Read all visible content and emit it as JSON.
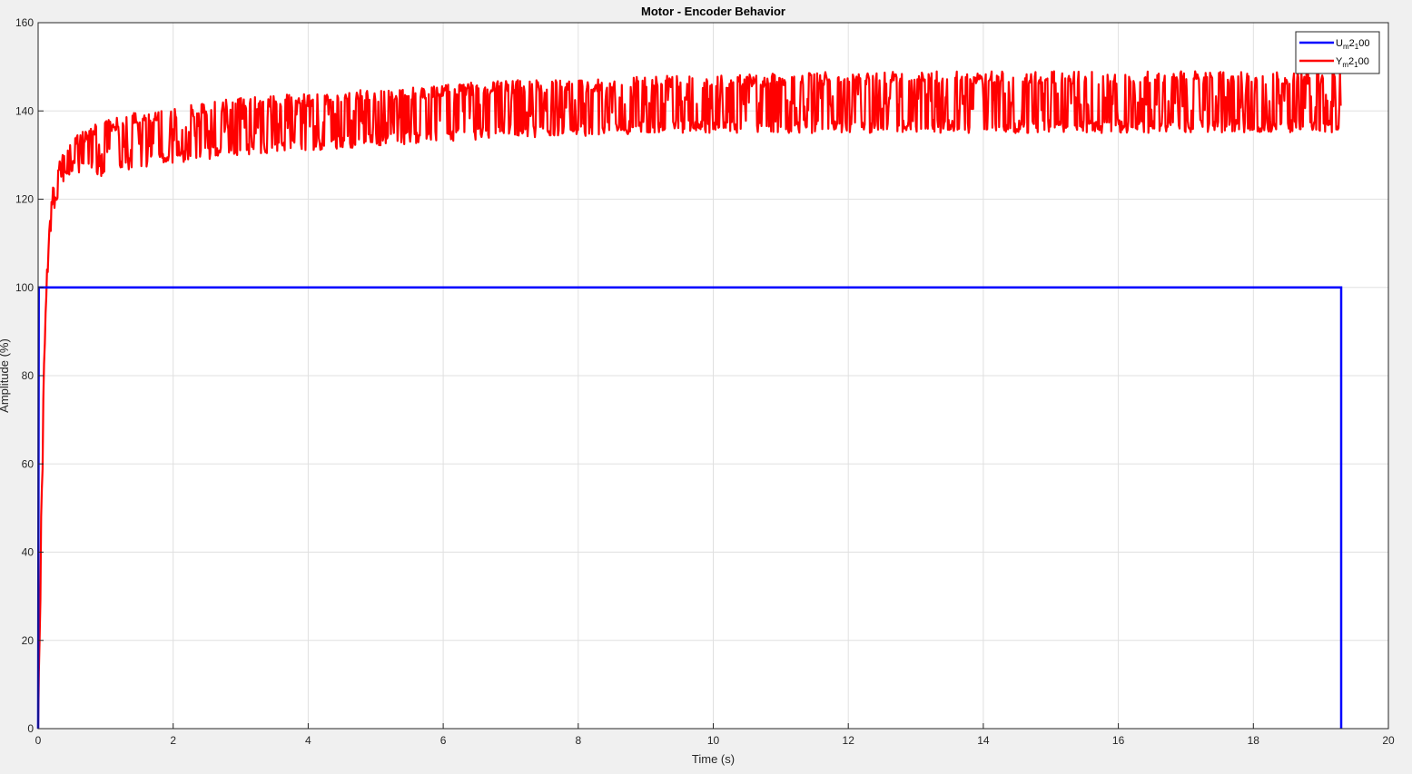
{
  "chart_data": {
    "type": "line",
    "title": "Motor - Encoder Behavior",
    "xlabel": "Time (s)",
    "ylabel": "Amplitude (%)",
    "xlim": [
      0,
      20
    ],
    "ylim": [
      0,
      160
    ],
    "x_ticks": [
      0,
      2,
      4,
      6,
      8,
      10,
      12,
      14,
      16,
      18,
      20
    ],
    "y_ticks": [
      0,
      20,
      40,
      60,
      80,
      100,
      120,
      140,
      160
    ],
    "grid": true,
    "legend_position": "top-right",
    "colors": {
      "U": "#0000ff",
      "Y": "#ff0000",
      "grid": "#e0e0e0",
      "axes": "#262626"
    },
    "series": [
      {
        "name": "U_m2_100",
        "legend_main": "U",
        "legend_sub": "m",
        "legend_mid": "2",
        "legend_sub2": "1",
        "legend_end": "00",
        "x": [
          0,
          0.0,
          0.01,
          19.3,
          19.3
        ],
        "y": [
          0,
          0,
          100,
          100,
          0
        ]
      },
      {
        "name": "Y_m2_100",
        "legend_main": "Y",
        "legend_sub": "m",
        "legend_mid": "2",
        "legend_sub2": "1",
        "legend_end": "00",
        "style": "noisy-step-response",
        "x": [
          0,
          0.05,
          0.1,
          0.15,
          0.2,
          0.3,
          0.4,
          0.5,
          0.7,
          1.0,
          1.5,
          2,
          3,
          4,
          5,
          6,
          7,
          8,
          9,
          10,
          12,
          14,
          16,
          18,
          19.3
        ],
        "y_low": [
          0,
          40,
          80,
          105,
          115,
          120,
          124,
          126,
          126,
          125,
          127,
          128,
          130,
          131,
          132,
          133,
          134,
          134,
          135,
          135,
          135,
          135,
          135,
          135,
          135
        ],
        "y_high": [
          0,
          60,
          95,
          112,
          122,
          128,
          132,
          134,
          136,
          138,
          140,
          141,
          143,
          144,
          145,
          146,
          147,
          147,
          148,
          148,
          149,
          149,
          149,
          149,
          149
        ]
      }
    ]
  }
}
